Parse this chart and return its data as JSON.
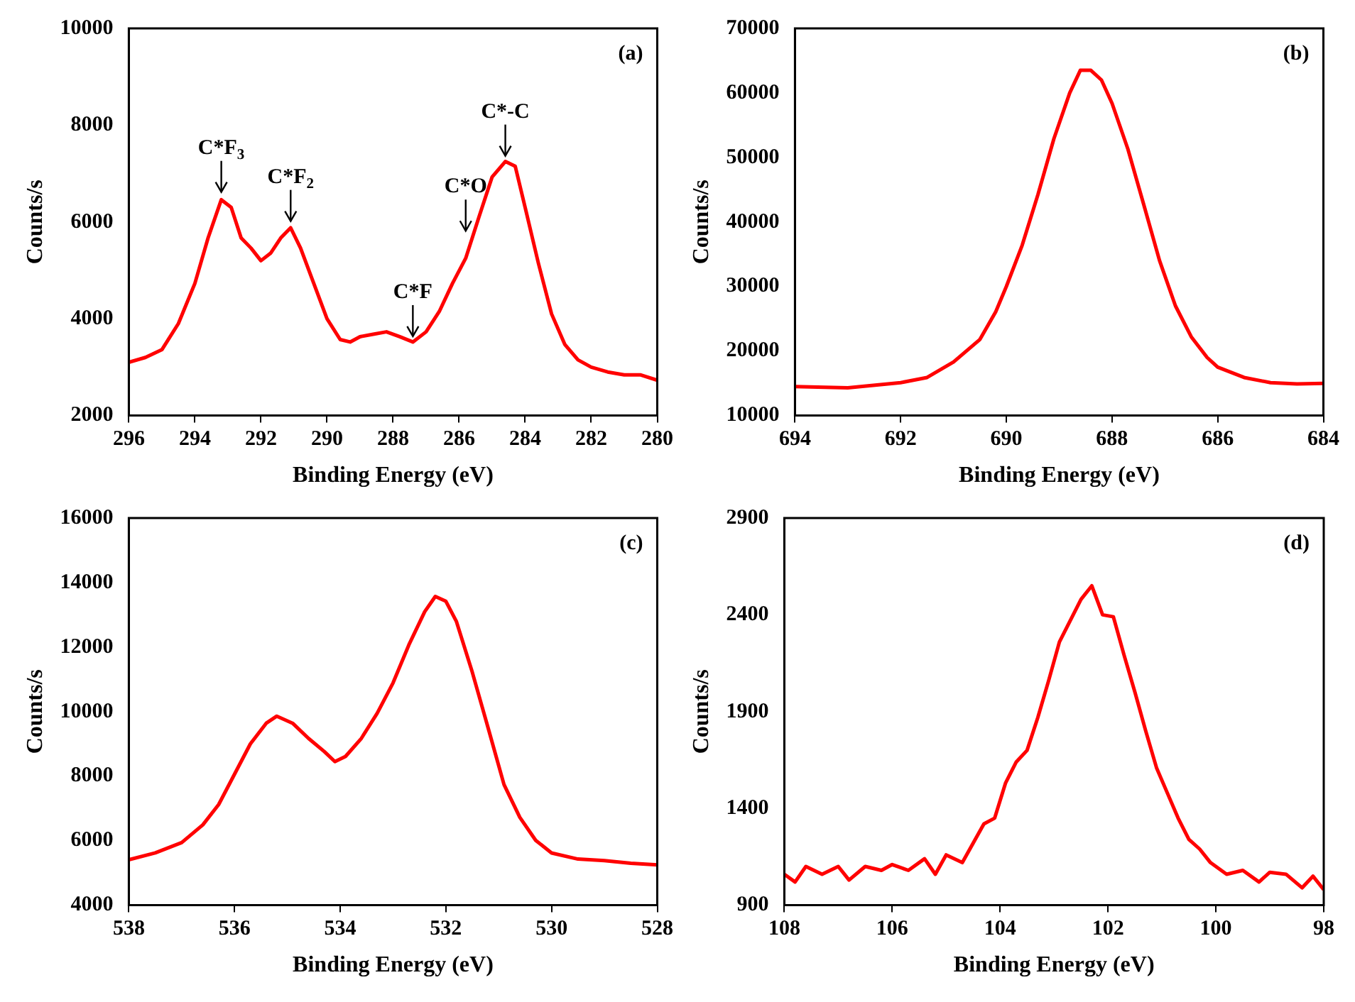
{
  "chart_data": [
    {
      "type": "line",
      "xlabel": "Binding Energy (eV)",
      "ylabel": "Counts/s",
      "xlim": [
        296,
        280
      ],
      "xticks": [
        296,
        294,
        292,
        290,
        288,
        286,
        284,
        282,
        280
      ],
      "ylim": [
        2000,
        10000
      ],
      "yticks": [
        2000,
        4000,
        6000,
        8000,
        10000
      ],
      "grid": false,
      "legend": false,
      "marker": "none",
      "line_style": "solid",
      "annotations": [
        "(a)",
        {
          "text": "C*F$_{3}$",
          "x": 293.2,
          "y": 6500
        },
        {
          "text": "C*F$_{2}$",
          "x": 291.1,
          "y": 5900
        },
        {
          "text": "C*F",
          "x": 287.4,
          "y": 3520
        },
        {
          "text": "C*O",
          "x": 285.8,
          "y": 5700
        },
        {
          "text": "C*-C",
          "x": 284.6,
          "y": 7250
        }
      ],
      "series": [
        {
          "color": "#ff0000",
          "x": [
            296,
            295.5,
            295,
            294.5,
            294,
            293.6,
            293.2,
            292.9,
            292.6,
            292.3,
            292,
            291.7,
            291.4,
            291.1,
            290.8,
            290.4,
            290,
            289.6,
            289.3,
            289,
            288.6,
            288.2,
            287.8,
            287.4,
            287,
            286.6,
            286.2,
            285.8,
            285.4,
            285,
            284.6,
            284.3,
            284,
            283.6,
            283.2,
            282.8,
            282.4,
            282,
            281.5,
            281,
            280.5,
            280
          ],
          "values": [
            3100,
            3200,
            3360,
            3900,
            4730,
            5670,
            6460,
            6300,
            5670,
            5460,
            5200,
            5360,
            5670,
            5880,
            5460,
            4730,
            4000,
            3570,
            3520,
            3630,
            3680,
            3730,
            3630,
            3520,
            3730,
            4150,
            4730,
            5250,
            6100,
            6930,
            7250,
            7150,
            6300,
            5150,
            4100,
            3470,
            3150,
            3000,
            2900,
            2840,
            2840,
            2730
          ]
        }
      ]
    },
    {
      "type": "line",
      "xlabel": "Binding Energy (eV)",
      "ylabel": "Counts/s",
      "xlim": [
        694,
        684
      ],
      "xticks": [
        694,
        692,
        690,
        688,
        686,
        684
      ],
      "ylim": [
        10000,
        70000
      ],
      "yticks": [
        10000,
        20000,
        30000,
        40000,
        50000,
        60000,
        70000
      ],
      "grid": false,
      "legend": false,
      "marker": "none",
      "line_style": "solid",
      "annotations": [
        "(b)"
      ],
      "series": [
        {
          "color": "#ff0000",
          "x": [
            694,
            693,
            692,
            691.5,
            691,
            690.5,
            690.2,
            690,
            689.7,
            689.4,
            689.1,
            688.8,
            688.6,
            688.4,
            688.2,
            688,
            687.7,
            687.4,
            687.1,
            686.8,
            686.5,
            686.2,
            686,
            685.5,
            685,
            684.5,
            684
          ],
          "values": [
            14500,
            14300,
            15100,
            15900,
            18300,
            21800,
            26100,
            30000,
            36400,
            44300,
            52900,
            60000,
            63500,
            63500,
            62000,
            58400,
            51300,
            42700,
            34000,
            27000,
            22200,
            19000,
            17500,
            15900,
            15100,
            14900,
            15000
          ]
        }
      ]
    },
    {
      "type": "line",
      "xlabel": "Binding Energy (eV)",
      "ylabel": "Counts/s",
      "xlim": [
        538,
        528
      ],
      "xticks": [
        538,
        536,
        534,
        532,
        530,
        528
      ],
      "ylim": [
        4000,
        16000
      ],
      "yticks": [
        4000,
        6000,
        8000,
        10000,
        12000,
        14000,
        16000
      ],
      "grid": false,
      "legend": false,
      "marker": "none",
      "line_style": "solid",
      "annotations": [
        "(c)"
      ],
      "series": [
        {
          "color": "#ff0000",
          "x": [
            538,
            537.5,
            537,
            536.6,
            536.3,
            536,
            535.7,
            535.4,
            535.2,
            534.9,
            534.6,
            534.3,
            534.1,
            533.9,
            533.6,
            533.3,
            533,
            532.7,
            532.4,
            532.2,
            532,
            531.8,
            531.5,
            531.2,
            530.9,
            530.6,
            530.3,
            530,
            529.5,
            529,
            528.5,
            528
          ],
          "values": [
            5410,
            5620,
            5940,
            6490,
            7120,
            8060,
            9000,
            9640,
            9860,
            9640,
            9170,
            8760,
            8450,
            8610,
            9170,
            9950,
            10890,
            12070,
            13100,
            13570,
            13420,
            12790,
            11220,
            9490,
            7740,
            6720,
            6010,
            5620,
            5430,
            5380,
            5300,
            5250
          ]
        }
      ]
    },
    {
      "type": "line",
      "xlabel": "Binding Energy (eV)",
      "ylabel": "Counts/s",
      "xlim": [
        108,
        98
      ],
      "xticks": [
        108,
        106,
        104,
        102,
        100,
        98
      ],
      "ylim": [
        900,
        2900
      ],
      "yticks": [
        900,
        1400,
        1900,
        2400,
        2900
      ],
      "grid": false,
      "legend": false,
      "marker": "none",
      "line_style": "solid",
      "annotations": [
        "(d)"
      ],
      "series": [
        {
          "color": "#ff0000",
          "x": [
            108,
            107.8,
            107.6,
            107.3,
            107,
            106.8,
            106.5,
            106.2,
            106,
            105.7,
            105.4,
            105.2,
            105,
            104.7,
            104.5,
            104.3,
            104.1,
            103.9,
            103.7,
            103.5,
            103.3,
            103.1,
            102.9,
            102.7,
            102.5,
            102.3,
            102.1,
            101.9,
            101.7,
            101.5,
            101.3,
            101.1,
            100.9,
            100.7,
            100.5,
            100.3,
            100.1,
            99.8,
            99.5,
            99.2,
            99,
            98.7,
            98.4,
            98.2,
            98
          ],
          "values": [
            1060,
            1020,
            1100,
            1060,
            1100,
            1030,
            1100,
            1080,
            1110,
            1080,
            1140,
            1060,
            1160,
            1120,
            1220,
            1320,
            1350,
            1530,
            1640,
            1700,
            1870,
            2060,
            2260,
            2370,
            2480,
            2550,
            2400,
            2390,
            2190,
            2000,
            1800,
            1610,
            1480,
            1350,
            1240,
            1190,
            1120,
            1060,
            1080,
            1020,
            1070,
            1060,
            990,
            1050,
            980
          ]
        }
      ]
    }
  ]
}
